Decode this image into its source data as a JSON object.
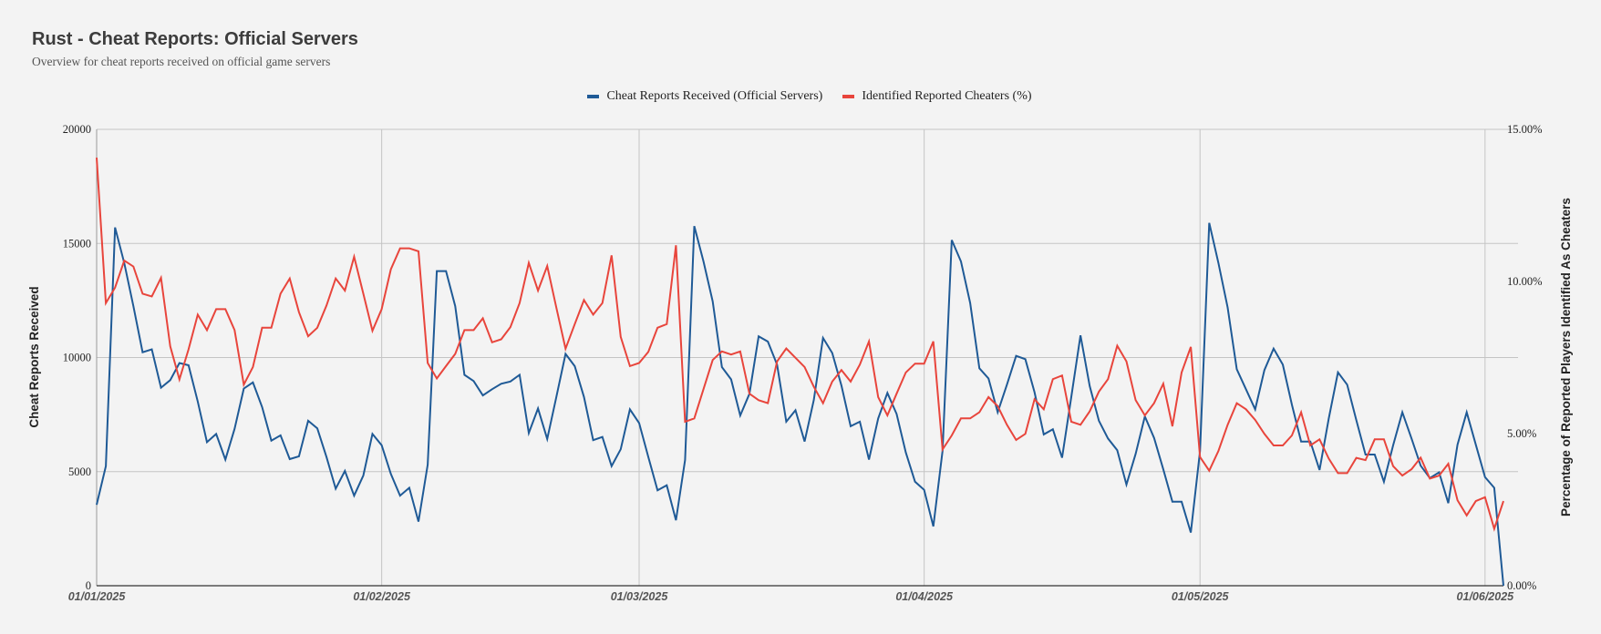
{
  "chart_data": {
    "type": "line",
    "title": "Rust - Cheat Reports: Official Servers",
    "subtitle": "Overview for cheat reports received on official game servers",
    "x_start": "2025-01-01",
    "x_step": "1 day",
    "xlabel": "",
    "x_tick_labels": [
      "01/01/2025",
      "01/02/2025",
      "01/03/2025",
      "01/04/2025",
      "01/05/2025",
      "01/06/2025"
    ],
    "x_tick_day_index": [
      0,
      31,
      59,
      90,
      120,
      151
    ],
    "ylabel_left": "Cheat Reports Received",
    "ylabel_right": "Percentage of Reported Players Identified As Cheaters",
    "ylim_left": [
      0,
      20000
    ],
    "ylim_right": [
      0,
      15
    ],
    "y_ticks_left": [
      "20000",
      "15000",
      "10000",
      "5000",
      "0"
    ],
    "y_ticks_right": [
      "15.00%",
      "10.00%",
      "5.00%",
      "0.00%"
    ],
    "legend_position": "top-center",
    "grid": true,
    "series": [
      {
        "name": "Cheat Reports Received (Official Servers)",
        "axis": "left",
        "color": "#1f5a96",
        "values": [
          3550,
          5240,
          15700,
          14140,
          12250,
          10230,
          10360,
          8680,
          9010,
          9760,
          9660,
          8070,
          6290,
          6650,
          5530,
          6880,
          8640,
          8910,
          7830,
          6360,
          6590,
          5550,
          5670,
          7230,
          6900,
          5640,
          4250,
          5030,
          3950,
          4830,
          6650,
          6160,
          4900,
          3950,
          4290,
          2810,
          5300,
          13790,
          13790,
          12250,
          9240,
          8970,
          8340,
          8610,
          8850,
          8950,
          9240,
          6690,
          7770,
          6430,
          8270,
          10160,
          9620,
          8270,
          6380,
          6520,
          5240,
          5980,
          7730,
          7130,
          5640,
          4180,
          4400,
          2870,
          5510,
          15760,
          14210,
          12460,
          9580,
          9040,
          7460,
          8410,
          10930,
          10700,
          9690,
          7190,
          7690,
          6320,
          8140,
          10860,
          10200,
          8770,
          6990,
          7190,
          5530,
          7330,
          8450,
          7530,
          5840,
          4560,
          4200,
          2600,
          5910,
          15150,
          14210,
          12390,
          9530,
          9080,
          7600,
          8810,
          10070,
          9930,
          8480,
          6630,
          6860,
          5610,
          8270,
          10970,
          8750,
          7230,
          6450,
          5940,
          4430,
          5780,
          7420,
          6480,
          5100,
          3680,
          3680,
          2330,
          5900,
          15900,
          14140,
          12190,
          9490,
          8610,
          7730,
          9450,
          10390,
          9690,
          7930,
          6320,
          6320,
          5070,
          7330,
          9350,
          8810,
          7260,
          5750,
          5750,
          4560,
          6150,
          7600,
          6450,
          5260,
          4720,
          4970,
          3620,
          6180,
          7600,
          6180,
          4760,
          4290,
          0
        ]
      },
      {
        "name": "Identified Reported Cheaters (%)",
        "axis": "right",
        "color": "#e8453c",
        "values": [
          14.07,
          9.29,
          9.8,
          10.69,
          10.49,
          9.6,
          9.51,
          10.12,
          7.87,
          6.78,
          7.77,
          8.91,
          8.4,
          9.09,
          9.09,
          8.4,
          6.61,
          7.19,
          8.48,
          8.48,
          9.6,
          10.1,
          8.99,
          8.2,
          8.48,
          9.21,
          10.1,
          9.7,
          10.81,
          9.6,
          8.38,
          9.09,
          10.4,
          11.09,
          11.09,
          10.99,
          7.32,
          6.81,
          7.22,
          7.62,
          8.4,
          8.4,
          8.79,
          8.0,
          8.1,
          8.5,
          9.29,
          10.61,
          9.7,
          10.51,
          9.14,
          7.79,
          8.6,
          9.39,
          8.91,
          9.29,
          10.86,
          8.18,
          7.22,
          7.32,
          7.69,
          8.48,
          8.6,
          11.19,
          5.39,
          5.5,
          6.46,
          7.42,
          7.7,
          7.6,
          7.7,
          6.31,
          6.1,
          6.0,
          7.37,
          7.8,
          7.49,
          7.19,
          6.54,
          6.0,
          6.71,
          7.09,
          6.71,
          7.27,
          8.03,
          6.2,
          5.6,
          6.31,
          7.01,
          7.3,
          7.3,
          8.03,
          4.48,
          4.94,
          5.5,
          5.5,
          5.7,
          6.2,
          5.9,
          5.29,
          4.79,
          4.99,
          6.13,
          5.8,
          6.79,
          6.91,
          5.39,
          5.29,
          5.73,
          6.38,
          6.79,
          7.89,
          7.37,
          6.1,
          5.6,
          6.0,
          6.64,
          5.24,
          7.01,
          7.85,
          4.23,
          3.78,
          4.43,
          5.29,
          6.0,
          5.8,
          5.45,
          4.99,
          4.61,
          4.61,
          4.94,
          5.7,
          4.61,
          4.81,
          4.18,
          3.7,
          3.7,
          4.2,
          4.13,
          4.81,
          4.81,
          3.93,
          3.62,
          3.83,
          4.21,
          3.52,
          3.62,
          4.01,
          2.81,
          2.31,
          2.78,
          2.91,
          1.87,
          2.78
        ]
      }
    ]
  }
}
